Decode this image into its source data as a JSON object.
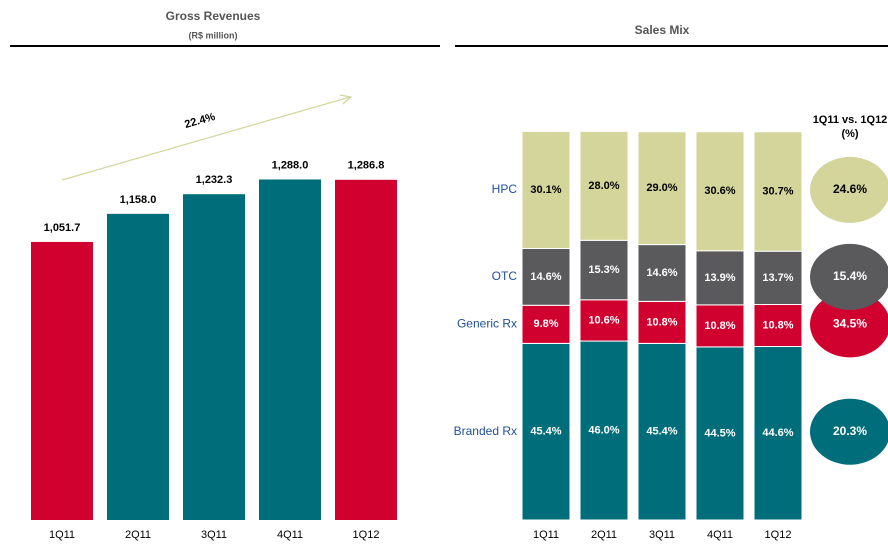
{
  "chart_data": [
    {
      "type": "bar",
      "title": "Gross Revenues",
      "subtitle": "(R$ million)",
      "categories": [
        "1Q11",
        "2Q11",
        "3Q11",
        "4Q11",
        "1Q12"
      ],
      "values": [
        1051.7,
        1158.0,
        1232.3,
        1288.0,
        1286.8
      ],
      "value_labels": [
        "1,051.7",
        "1,158.0",
        "1,232.3",
        "1,288.0",
        "1,286.8"
      ],
      "colors": [
        "#d0002f",
        "#006d7a",
        "#006d7a",
        "#006d7a",
        "#d0002f"
      ],
      "ylim": [
        0,
        1600
      ],
      "annotation": "22.4%"
    },
    {
      "type": "stacked_bar",
      "title": "Sales Mix",
      "categories": [
        "1Q11",
        "2Q11",
        "3Q11",
        "4Q11",
        "1Q12"
      ],
      "ylim": [
        0,
        100
      ],
      "growth_title": "1Q11 vs. 1Q12",
      "growth_subtitle": "(%)",
      "series": [
        {
          "name": "Branded Rx",
          "color": "#006d7a",
          "values": [
            45.4,
            46.0,
            45.4,
            44.5,
            44.6
          ],
          "value_labels": [
            "45.4%",
            "46.0%",
            "45.4%",
            "44.5%",
            "44.6%"
          ],
          "growth": 20.3,
          "growth_label": "20.3%"
        },
        {
          "name": "Generic Rx",
          "color": "#d0002f",
          "values": [
            9.8,
            10.6,
            10.8,
            10.8,
            10.8
          ],
          "value_labels": [
            "9.8%",
            "10.6%",
            "10.8%",
            "10.8%",
            "10.8%"
          ],
          "growth": 34.5,
          "growth_label": "34.5%"
        },
        {
          "name": "OTC",
          "color": "#5a5a5c",
          "values": [
            14.6,
            15.3,
            14.6,
            13.9,
            13.7
          ],
          "value_labels": [
            "14.6%",
            "15.3%",
            "14.6%",
            "13.9%",
            "13.7%"
          ],
          "growth": 15.4,
          "growth_label": "15.4%"
        },
        {
          "name": "HPC",
          "color": "#d3d59b",
          "values": [
            30.1,
            28.0,
            29.0,
            30.6,
            30.7
          ],
          "value_labels": [
            "30.1%",
            "28.0%",
            "29.0%",
            "30.6%",
            "30.7%"
          ],
          "growth": 24.6,
          "growth_label": "24.6%"
        }
      ]
    }
  ]
}
